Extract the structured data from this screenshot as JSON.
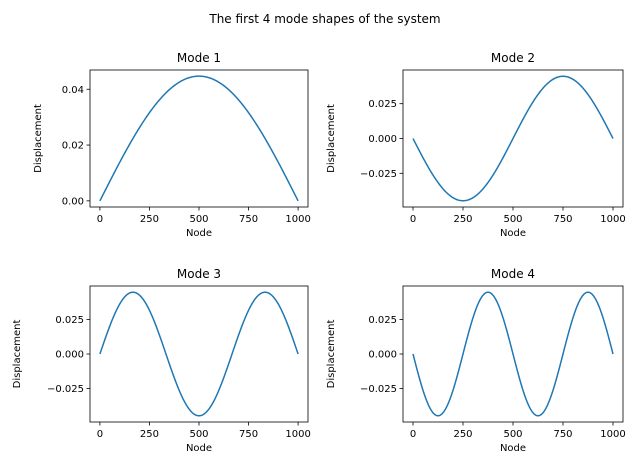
{
  "figure": {
    "title": "The first 4 mode shapes of the system"
  },
  "chart_data": [
    {
      "type": "line",
      "title": "Mode 1",
      "xlabel": "Node",
      "ylabel": "Displacement",
      "x_range": [
        0,
        1000
      ],
      "xlim": [
        -50,
        1050
      ],
      "ylim": [
        -0.0022,
        0.0469
      ],
      "xticks": [
        0,
        250,
        500,
        750,
        1000
      ],
      "xtick_labels": [
        "0",
        "250",
        "500",
        "750",
        "1000"
      ],
      "yticks": [
        0.0,
        0.02,
        0.04
      ],
      "ytick_labels": [
        "0.00",
        "0.02",
        "0.04"
      ],
      "grid": false,
      "series": [
        {
          "color": "#1f77b4",
          "amplitude": 0.0447,
          "half_waves": 1,
          "x": [
            0,
            125,
            250,
            375,
            500,
            625,
            750,
            875,
            1000
          ],
          "y": [
            0,
            0.0171,
            0.0316,
            0.0413,
            0.0447,
            0.0413,
            0.0316,
            0.0171,
            0
          ]
        }
      ]
    },
    {
      "type": "line",
      "title": "Mode 2",
      "xlabel": "Node",
      "ylabel": "Displacement",
      "x_range": [
        0,
        1000
      ],
      "xlim": [
        -50,
        1050
      ],
      "ylim": [
        -0.0492,
        0.0492
      ],
      "xticks": [
        0,
        250,
        500,
        750,
        1000
      ],
      "xtick_labels": [
        "0",
        "250",
        "500",
        "750",
        "1000"
      ],
      "yticks": [
        -0.025,
        0.0,
        0.025
      ],
      "ytick_labels": [
        "−0.025",
        "0.000",
        "0.025"
      ],
      "grid": false,
      "series": [
        {
          "color": "#1f77b4",
          "amplitude": 0.0447,
          "half_waves": 2,
          "phase_sign": -1,
          "x": [
            0,
            125,
            250,
            375,
            500,
            625,
            750,
            875,
            1000
          ],
          "y": [
            0,
            -0.0316,
            -0.0447,
            -0.0316,
            0,
            0.0316,
            0.0447,
            0.0316,
            0
          ]
        }
      ]
    },
    {
      "type": "line",
      "title": "Mode 3",
      "xlabel": "Node",
      "ylabel": "Displacement",
      "x_range": [
        0,
        1000
      ],
      "xlim": [
        -50,
        1050
      ],
      "ylim": [
        -0.0492,
        0.0492
      ],
      "xticks": [
        0,
        250,
        500,
        750,
        1000
      ],
      "xtick_labels": [
        "0",
        "250",
        "500",
        "750",
        "1000"
      ],
      "yticks": [
        -0.025,
        0.0,
        0.025
      ],
      "ytick_labels": [
        "−0.025",
        "0.000",
        "0.025"
      ],
      "grid": false,
      "series": [
        {
          "color": "#1f77b4",
          "amplitude": 0.0447,
          "half_waves": 3,
          "phase_sign": 1,
          "x": [
            0,
            167,
            333,
            500,
            667,
            833,
            1000
          ],
          "y": [
            0,
            0.0447,
            0,
            -0.0447,
            0,
            0.0447,
            0
          ]
        }
      ]
    },
    {
      "type": "line",
      "title": "Mode 4",
      "xlabel": "Node",
      "ylabel": "Displacement",
      "x_range": [
        0,
        1000
      ],
      "xlim": [
        -50,
        1050
      ],
      "ylim": [
        -0.0492,
        0.0492
      ],
      "xticks": [
        0,
        250,
        500,
        750,
        1000
      ],
      "xtick_labels": [
        "0",
        "250",
        "500",
        "750",
        "1000"
      ],
      "yticks": [
        -0.025,
        0.0,
        0.025
      ],
      "ytick_labels": [
        "−0.025",
        "0.000",
        "0.025"
      ],
      "grid": false,
      "series": [
        {
          "color": "#1f77b4",
          "amplitude": 0.0447,
          "half_waves": 4,
          "phase_sign": -1,
          "x": [
            0,
            125,
            250,
            375,
            500,
            625,
            750,
            875,
            1000
          ],
          "y": [
            0,
            -0.0447,
            0,
            0.0447,
            0,
            -0.0447,
            0,
            0.0447,
            0
          ]
        }
      ]
    }
  ]
}
